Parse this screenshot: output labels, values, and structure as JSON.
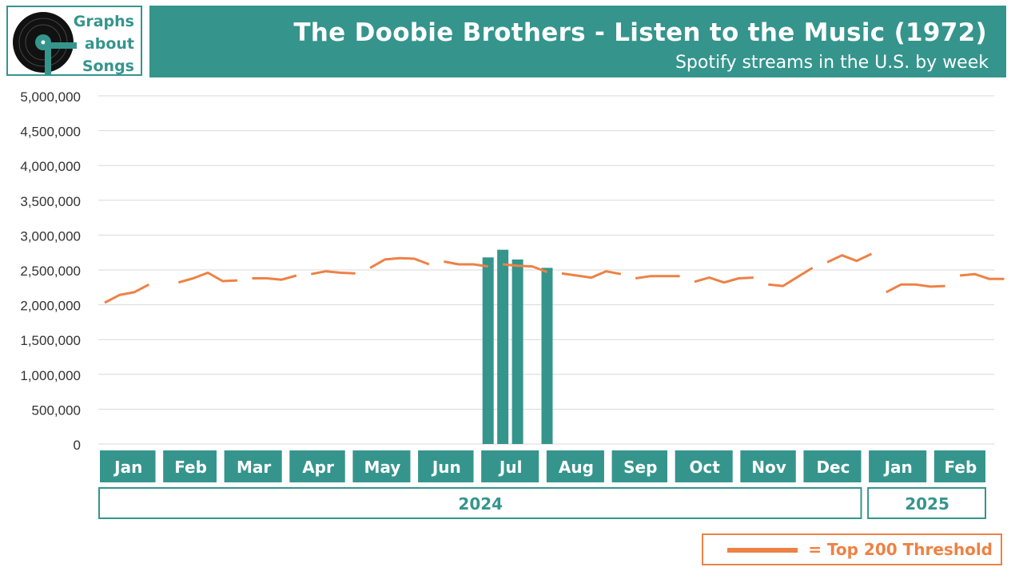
{
  "header": {
    "logo_lines": [
      "Graphs",
      "about",
      "Songs"
    ],
    "title": "The Doobie Brothers - Listen to the Music (1972)",
    "subtitle": "Spotify streams in the U.S. by week"
  },
  "legend": {
    "label": "= Top 200 Threshold"
  },
  "colors": {
    "accent": "#35958d",
    "threshold": "#ed8245",
    "grid": "#d9d9d9"
  },
  "chart_data": {
    "type": "bar",
    "title": "The Doobie Brothers - Listen to the Music (1972)",
    "subtitle": "Spotify streams in the U.S. by week",
    "ylim": [
      0,
      5000000
    ],
    "yticks": [
      0,
      500000,
      1000000,
      1500000,
      2000000,
      2500000,
      3000000,
      3500000,
      4000000,
      4500000,
      5000000
    ],
    "ytick_labels": [
      "0",
      "500,000",
      "1,000,000",
      "1,500,000",
      "2,000,000",
      "2,500,000",
      "3,000,000",
      "3,500,000",
      "4,000,000",
      "4,500,000",
      "5,000,000"
    ],
    "grid": true,
    "x_start": "2024-01-05",
    "x_end": "2025-02-28",
    "months": [
      {
        "label": "Jan",
        "start": "2024-01-01",
        "end": "2024-01-31"
      },
      {
        "label": "Feb",
        "start": "2024-02-01",
        "end": "2024-02-29"
      },
      {
        "label": "Mar",
        "start": "2024-03-01",
        "end": "2024-03-31"
      },
      {
        "label": "Apr",
        "start": "2024-04-01",
        "end": "2024-04-30"
      },
      {
        "label": "May",
        "start": "2024-05-01",
        "end": "2024-05-31"
      },
      {
        "label": "Jun",
        "start": "2024-06-01",
        "end": "2024-06-30"
      },
      {
        "label": "Jul",
        "start": "2024-07-01",
        "end": "2024-07-31"
      },
      {
        "label": "Aug",
        "start": "2024-08-01",
        "end": "2024-08-31"
      },
      {
        "label": "Sep",
        "start": "2024-09-01",
        "end": "2024-09-30"
      },
      {
        "label": "Oct",
        "start": "2024-10-01",
        "end": "2024-10-31"
      },
      {
        "label": "Nov",
        "start": "2024-11-01",
        "end": "2024-11-30"
      },
      {
        "label": "Dec",
        "start": "2024-12-01",
        "end": "2024-12-31"
      },
      {
        "label": "Jan",
        "start": "2025-01-01",
        "end": "2025-01-31"
      },
      {
        "label": "Feb",
        "start": "2025-02-01",
        "end": "2025-02-28"
      }
    ],
    "years": [
      {
        "label": "2024",
        "start": "2024-01-01",
        "end": "2024-12-31"
      },
      {
        "label": "2025",
        "start": "2025-01-01",
        "end": "2025-02-28"
      }
    ],
    "series": [
      {
        "name": "Streams",
        "kind": "bar",
        "color": "#35958d",
        "points": [
          {
            "x": "2024-07-05",
            "y": 2680000
          },
          {
            "x": "2024-07-12",
            "y": 2790000
          },
          {
            "x": "2024-07-19",
            "y": 2650000
          },
          {
            "x": "2024-08-02",
            "y": 2530000
          }
        ]
      },
      {
        "name": "Top 200 Threshold",
        "kind": "line",
        "color": "#ed8245",
        "segments": [
          [
            [
              "2024-01-05",
              2030000
            ],
            [
              "2024-01-12",
              2140000
            ],
            [
              "2024-01-19",
              2180000
            ],
            [
              "2024-01-26",
              2290000
            ]
          ],
          [
            [
              "2024-02-09",
              2320000
            ],
            [
              "2024-02-16",
              2380000
            ],
            [
              "2024-02-23",
              2460000
            ],
            [
              "2024-03-01",
              2340000
            ],
            [
              "2024-03-08",
              2350000
            ]
          ],
          [
            [
              "2024-03-15",
              2380000
            ],
            [
              "2024-03-22",
              2380000
            ],
            [
              "2024-03-29",
              2360000
            ],
            [
              "2024-04-05",
              2420000
            ]
          ],
          [
            [
              "2024-04-12",
              2440000
            ],
            [
              "2024-04-19",
              2480000
            ],
            [
              "2024-04-26",
              2460000
            ],
            [
              "2024-05-03",
              2450000
            ]
          ],
          [
            [
              "2024-05-10",
              2530000
            ],
            [
              "2024-05-17",
              2650000
            ],
            [
              "2024-05-24",
              2670000
            ],
            [
              "2024-05-31",
              2660000
            ],
            [
              "2024-06-07",
              2580000
            ]
          ],
          [
            [
              "2024-06-14",
              2620000
            ],
            [
              "2024-06-21",
              2580000
            ],
            [
              "2024-06-28",
              2580000
            ],
            [
              "2024-07-05",
              2550000
            ]
          ],
          [
            [
              "2024-07-12",
              2580000
            ],
            [
              "2024-07-19",
              2560000
            ],
            [
              "2024-07-26",
              2550000
            ],
            [
              "2024-08-02",
              2470000
            ]
          ],
          [
            [
              "2024-08-09",
              2450000
            ],
            [
              "2024-08-16",
              2420000
            ],
            [
              "2024-08-23",
              2390000
            ],
            [
              "2024-08-30",
              2480000
            ],
            [
              "2024-09-06",
              2440000
            ]
          ],
          [
            [
              "2024-09-13",
              2380000
            ],
            [
              "2024-09-20",
              2410000
            ],
            [
              "2024-09-27",
              2410000
            ],
            [
              "2024-10-04",
              2410000
            ]
          ],
          [
            [
              "2024-10-11",
              2330000
            ],
            [
              "2024-10-18",
              2390000
            ],
            [
              "2024-10-25",
              2320000
            ],
            [
              "2024-11-01",
              2380000
            ],
            [
              "2024-11-08",
              2390000
            ]
          ],
          [
            [
              "2024-11-15",
              2290000
            ],
            [
              "2024-11-22",
              2270000
            ],
            [
              "2024-11-29",
              2400000
            ],
            [
              "2024-12-06",
              2530000
            ]
          ],
          [
            [
              "2024-12-13",
              2610000
            ],
            [
              "2024-12-20",
              2710000
            ],
            [
              "2024-12-27",
              2630000
            ],
            [
              "2025-01-03",
              2730000
            ]
          ],
          [
            [
              "2025-01-10",
              2180000
            ],
            [
              "2025-01-17",
              2290000
            ],
            [
              "2025-01-24",
              2290000
            ],
            [
              "2025-01-31",
              2260000
            ],
            [
              "2025-02-07",
              2270000
            ]
          ],
          [
            [
              "2025-02-14",
              2420000
            ],
            [
              "2025-02-21",
              2440000
            ],
            [
              "2025-02-28",
              2370000
            ],
            [
              "2025-03-07",
              2370000
            ]
          ]
        ]
      }
    ]
  }
}
